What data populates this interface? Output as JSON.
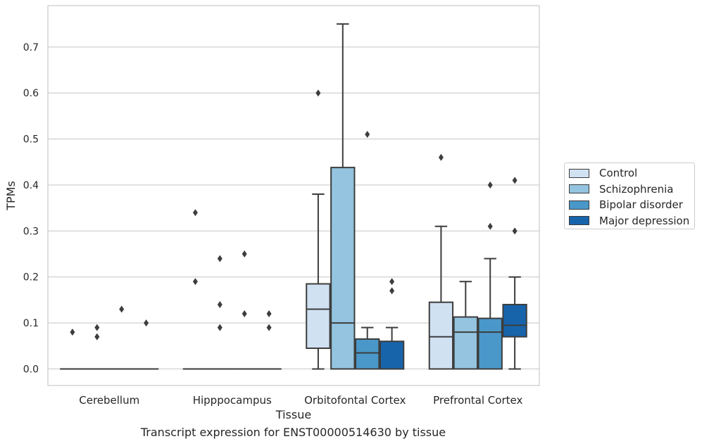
{
  "caption": "Transcript expression for ENST00000514630 by tissue",
  "chart_data": {
    "type": "box",
    "xlabel": "Tissue",
    "ylabel": "TPMs",
    "ylim": [
      -0.036,
      0.79
    ],
    "yticks": [
      "0.0",
      "0.1",
      "0.2",
      "0.3",
      "0.4",
      "0.5",
      "0.6",
      "0.7"
    ],
    "grid": "horizontal",
    "legend_position": "right",
    "categories": [
      "Cerebellum",
      "Hipppocampus",
      "Orbitofontal Cortex",
      "Prefrontal Cortex"
    ],
    "series": [
      {
        "name": "Control",
        "color": "#d0e1f2",
        "boxes": [
          {
            "whislo": 0,
            "q1": 0,
            "med": 0,
            "q3": 0,
            "whishi": 0,
            "fliers": [
              0.08
            ]
          },
          {
            "whislo": 0,
            "q1": 0,
            "med": 0,
            "q3": 0,
            "whishi": 0,
            "fliers": [
              0.34,
              0.19
            ]
          },
          {
            "whislo": 0,
            "q1": 0.045,
            "med": 0.13,
            "q3": 0.185,
            "whishi": 0.38,
            "fliers": [
              0.6
            ]
          },
          {
            "whislo": 0,
            "q1": 0,
            "med": 0.07,
            "q3": 0.145,
            "whishi": 0.31,
            "fliers": [
              0.46
            ]
          }
        ]
      },
      {
        "name": "Schizophrenia",
        "color": "#94c4df",
        "boxes": [
          {
            "whislo": 0,
            "q1": 0,
            "med": 0,
            "q3": 0,
            "whishi": 0,
            "fliers": [
              0.09,
              0.07
            ]
          },
          {
            "whislo": 0,
            "q1": 0,
            "med": 0,
            "q3": 0,
            "whishi": 0,
            "fliers": [
              0.24,
              0.14,
              0.09
            ]
          },
          {
            "whislo": 0,
            "q1": 0,
            "med": 0.1,
            "q3": 0.438,
            "whishi": 0.75,
            "fliers": []
          },
          {
            "whislo": 0,
            "q1": 0,
            "med": 0.08,
            "q3": 0.113,
            "whishi": 0.19,
            "fliers": []
          }
        ]
      },
      {
        "name": "Bipolar disorder",
        "color": "#4a98c9",
        "boxes": [
          {
            "whislo": 0,
            "q1": 0,
            "med": 0,
            "q3": 0,
            "whishi": 0,
            "fliers": [
              0.13
            ]
          },
          {
            "whislo": 0,
            "q1": 0,
            "med": 0,
            "q3": 0,
            "whishi": 0,
            "fliers": [
              0.25,
              0.12
            ]
          },
          {
            "whislo": 0,
            "q1": 0,
            "med": 0.035,
            "q3": 0.065,
            "whishi": 0.09,
            "fliers": [
              0.51
            ]
          },
          {
            "whislo": 0,
            "q1": 0,
            "med": 0.08,
            "q3": 0.11,
            "whishi": 0.24,
            "fliers": [
              0.4,
              0.31
            ]
          }
        ]
      },
      {
        "name": "Major depression",
        "color": "#1764ab",
        "boxes": [
          {
            "whislo": 0,
            "q1": 0,
            "med": 0,
            "q3": 0,
            "whishi": 0,
            "fliers": [
              0.1
            ]
          },
          {
            "whislo": 0,
            "q1": 0,
            "med": 0,
            "q3": 0,
            "whishi": 0,
            "fliers": [
              0.12,
              0.09
            ]
          },
          {
            "whislo": 0,
            "q1": 0,
            "med": 0,
            "q3": 0.06,
            "whishi": 0.09,
            "fliers": [
              0.19,
              0.17
            ]
          },
          {
            "whislo": 0,
            "q1": 0.07,
            "med": 0.095,
            "q3": 0.14,
            "whishi": 0.2,
            "fliers": [
              0.41,
              0.3
            ]
          }
        ]
      }
    ]
  }
}
